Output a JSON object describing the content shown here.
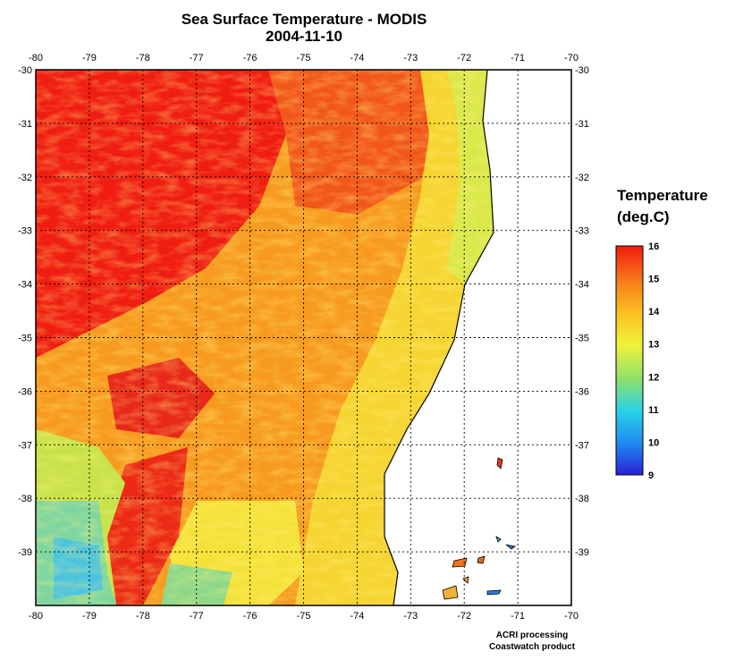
{
  "title": "Sea Surface Temperature - MODIS",
  "date": "2004-11-10",
  "map": {
    "lon_ticks": [
      "-80",
      "-79",
      "-78",
      "-77",
      "-76",
      "-75",
      "-74",
      "-73",
      "-72",
      "-71",
      "-70"
    ],
    "lat_ticks": [
      "-30",
      "-31",
      "-32",
      "-33",
      "-34",
      "-35",
      "-36",
      "-37",
      "-38",
      "-39"
    ],
    "lon_range": [
      -80,
      -70
    ],
    "lat_range": [
      -40,
      -30
    ],
    "grid": "dashed",
    "land_color": "#ffffff",
    "coast_color": "#000000"
  },
  "legend": {
    "title_line1": "Temperature",
    "title_line2": "(deg.C)",
    "labels": [
      "16",
      "15",
      "14",
      "13",
      "12",
      "11",
      "10",
      "9"
    ],
    "min": 9,
    "max": 16,
    "colors": [
      "#2b1fd6",
      "#1e8cf0",
      "#2ad2e6",
      "#8fe06a",
      "#f2f23a",
      "#fbbf22",
      "#f77a1a",
      "#f01a0e"
    ]
  },
  "credits": {
    "line1": "ACRI processing",
    "line2": "Coastwatch product"
  }
}
